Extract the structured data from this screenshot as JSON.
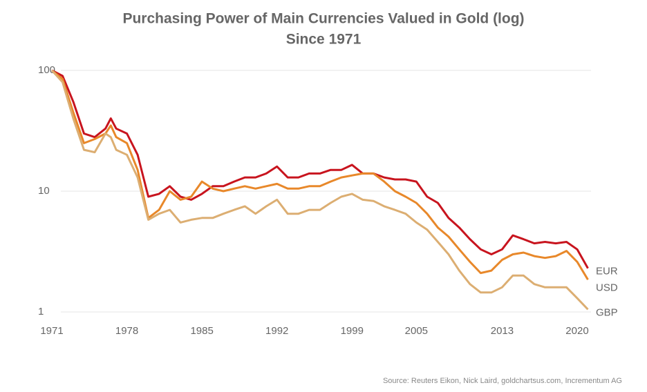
{
  "chart_data": {
    "type": "line",
    "title": "Purchasing Power of Main Currencies Valued in Gold (log)",
    "subtitle": "Since 1971",
    "source": "Source: Reuters Eikon, Nick Laird, goldchartsus.com, Incrementum AG",
    "log_y": true,
    "grid": true,
    "x": [
      1971,
      1972,
      1973,
      1974,
      1975,
      1976,
      1976.5,
      1977,
      1978,
      1979,
      1980,
      1981,
      1982,
      1983,
      1984,
      1985,
      1986,
      1987,
      1988,
      1989,
      1990,
      1991,
      1992,
      1993,
      1994,
      1995,
      1996,
      1997,
      1998,
      1999,
      2000,
      2001,
      2002,
      2003,
      2004,
      2005,
      2006,
      2007,
      2008,
      2009,
      2010,
      2011,
      2012,
      2013,
      2014,
      2015,
      2016,
      2017,
      2018,
      2019,
      2020,
      2021
    ],
    "xlim": [
      1971,
      2021.5
    ],
    "xticks": [
      1971,
      1978,
      1985,
      1992,
      1999,
      2005,
      2013,
      2020
    ],
    "ylim": [
      1,
      100
    ],
    "yticks": [
      1,
      10,
      100
    ],
    "series": [
      {
        "name": "EUR",
        "color": "#c8141e",
        "values": [
          100,
          90,
          55,
          30,
          28,
          33,
          40,
          33,
          30,
          20,
          9,
          9.5,
          11,
          9,
          8.5,
          9.5,
          11,
          11,
          12,
          13,
          13,
          14,
          16,
          13,
          13,
          14,
          14,
          15,
          15,
          16.5,
          14,
          14,
          13,
          12.5,
          12.5,
          12,
          9,
          8,
          6,
          5,
          4,
          3.3,
          3.0,
          3.3,
          4.3,
          4.0,
          3.7,
          3.8,
          3.7,
          3.8,
          3.3,
          2.3
        ]
      },
      {
        "name": "USD",
        "color": "#e8882a",
        "values": [
          100,
          85,
          45,
          25,
          27,
          30,
          35,
          28,
          25,
          15,
          6,
          7,
          10,
          8.5,
          9,
          12,
          10.5,
          10,
          10.5,
          11,
          10.5,
          11,
          11.5,
          10.5,
          10.5,
          11,
          11,
          12,
          13,
          13.5,
          14,
          14,
          12,
          10,
          9,
          8,
          6.5,
          5,
          4.2,
          3.3,
          2.6,
          2.1,
          2.2,
          2.7,
          3.0,
          3.1,
          2.9,
          2.8,
          2.9,
          3.2,
          2.6,
          1.85
        ]
      },
      {
        "name": "GBP",
        "color": "#dcae72",
        "values": [
          100,
          80,
          40,
          22,
          21,
          30,
          28,
          22,
          20,
          13,
          5.8,
          6.5,
          7,
          5.5,
          5.8,
          6,
          6,
          6.5,
          7,
          7.5,
          6.5,
          7.5,
          8.5,
          6.5,
          6.5,
          7,
          7,
          8,
          9,
          9.5,
          8.5,
          8.3,
          7.5,
          7,
          6.5,
          5.5,
          4.8,
          3.8,
          3.0,
          2.2,
          1.7,
          1.45,
          1.45,
          1.6,
          2.0,
          2.0,
          1.7,
          1.6,
          1.6,
          1.6,
          1.3,
          1.05
        ]
      }
    ]
  }
}
